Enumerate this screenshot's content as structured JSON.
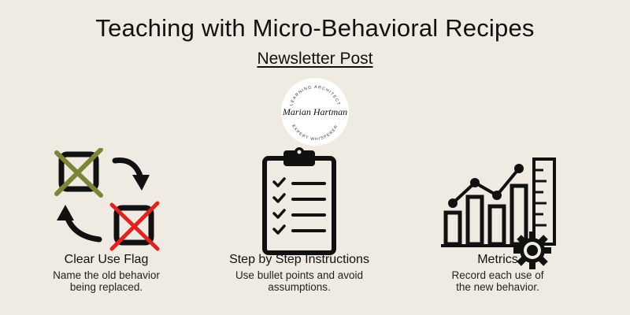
{
  "header": {
    "title": "Teaching with Micro-Behavioral Recipes",
    "subtitle": "Newsletter Post"
  },
  "logo": {
    "signature": "Marian Hartman",
    "arc_top": "LEARNING ARCHITECT",
    "arc_bottom": "EXPERT WHISPERER"
  },
  "items": [
    {
      "label": "Clear Use Flag",
      "desc_line1": "Name the old behavior",
      "desc_line2": "being replaced.",
      "icon": "swap-arrows-icon"
    },
    {
      "label": "Step by Step Instructions",
      "desc_line1": "Use bullet points and avoid",
      "desc_line2": "assumptions.",
      "icon": "clipboard-checklist-icon"
    },
    {
      "label": "Metrics",
      "desc_line1": "Record each use of",
      "desc_line2": "the new behavior.",
      "icon": "bar-chart-gear-icon"
    }
  ],
  "colors": {
    "background": "#efebe2",
    "olive_x": "#7d8438",
    "red_x": "#e0231e"
  }
}
